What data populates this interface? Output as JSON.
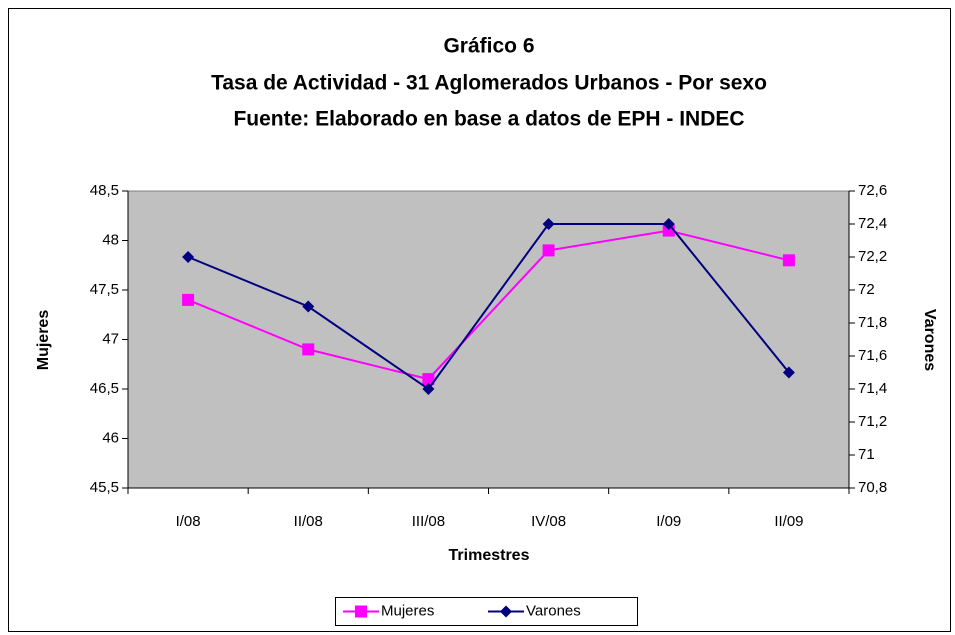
{
  "chart_data": {
    "type": "line",
    "title": [
      "Gráfico 6",
      "Tasa de Actividad - 31 Aglomerados Urbanos - Por sexo",
      "Fuente: Elaborado en base a datos de EPH - INDEC"
    ],
    "x_label": "Trimestres",
    "y_label": "Mujeres",
    "y2_label": "Varones",
    "categories": [
      "I/08",
      "II/08",
      "III/08",
      "IV/08",
      "I/09",
      "II/09"
    ],
    "series": [
      {
        "name": "Mujeres",
        "color": "#ff00ff",
        "marker": "square",
        "values": [
          47.4,
          46.9,
          46.6,
          47.9,
          48.1,
          47.8
        ]
      },
      {
        "name": "Varones",
        "color": "#000080",
        "marker": "diamond",
        "axis": "y2",
        "values": [
          72.2,
          71.9,
          71.4,
          72.4,
          72.4,
          71.5
        ]
      }
    ],
    "ylim": [
      45.5,
      48.5
    ],
    "yticks": [
      {
        "value": 45.5,
        "label": "45,5"
      },
      46,
      {
        "value": 46.5,
        "label": "46,5"
      },
      47,
      {
        "value": 47.5,
        "label": "47,5"
      },
      48,
      {
        "value": 48.5,
        "label": "48,5"
      }
    ],
    "y2lim": [
      70.8,
      72.6
    ],
    "y2ticks": [
      {
        "value": 70.8,
        "label": "70,8"
      },
      71,
      {
        "value": 71.2,
        "label": "71,2"
      },
      {
        "value": 71.4,
        "label": "71,4"
      },
      {
        "value": 71.6,
        "label": "71,6"
      },
      {
        "value": 71.8,
        "label": "71,8"
      },
      72,
      {
        "value": 72.2,
        "label": "72,2"
      },
      {
        "value": 72.4,
        "label": "72,4"
      },
      {
        "value": 72.6,
        "label": "72,6"
      }
    ],
    "plot_background": "#c0c0c0",
    "legend": "bottom"
  }
}
